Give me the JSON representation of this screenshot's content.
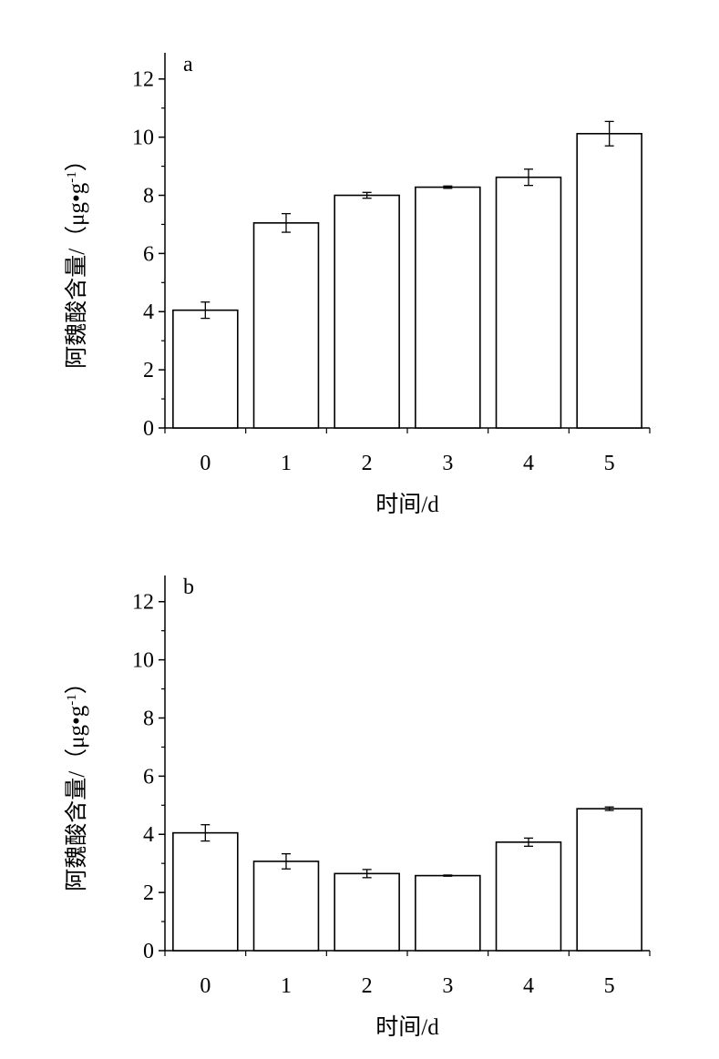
{
  "chart_data": [
    {
      "type": "bar",
      "panel_label": "a",
      "categories": [
        "0",
        "1",
        "2",
        "3",
        "4",
        "5"
      ],
      "values": [
        4.05,
        7.05,
        8.0,
        8.28,
        8.62,
        10.12
      ],
      "errors": [
        0.28,
        0.32,
        0.1,
        0.04,
        0.28,
        0.42
      ],
      "xlabel": "时间/d",
      "ylabel": "阿魏酸含量/（μg•g-1）",
      "ylim": [
        0,
        12
      ],
      "yticks": [
        "0",
        "2",
        "4",
        "6",
        "8",
        "10",
        "12"
      ],
      "grid": false,
      "bar_fill": "#ffffff",
      "bar_stroke": "#000000"
    },
    {
      "type": "bar",
      "panel_label": "b",
      "categories": [
        "0",
        "1",
        "2",
        "3",
        "4",
        "5"
      ],
      "values": [
        4.05,
        3.07,
        2.65,
        2.58,
        3.73,
        4.88
      ],
      "errors": [
        0.28,
        0.26,
        0.14,
        0.02,
        0.14,
        0.06
      ],
      "xlabel": "时间/d",
      "ylabel": "阿魏酸含量/（μg•g-1）",
      "ylim": [
        0,
        12
      ],
      "yticks": [
        "0",
        "2",
        "4",
        "6",
        "8",
        "10",
        "12"
      ],
      "grid": false,
      "bar_fill": "#ffffff",
      "bar_stroke": "#000000"
    }
  ]
}
